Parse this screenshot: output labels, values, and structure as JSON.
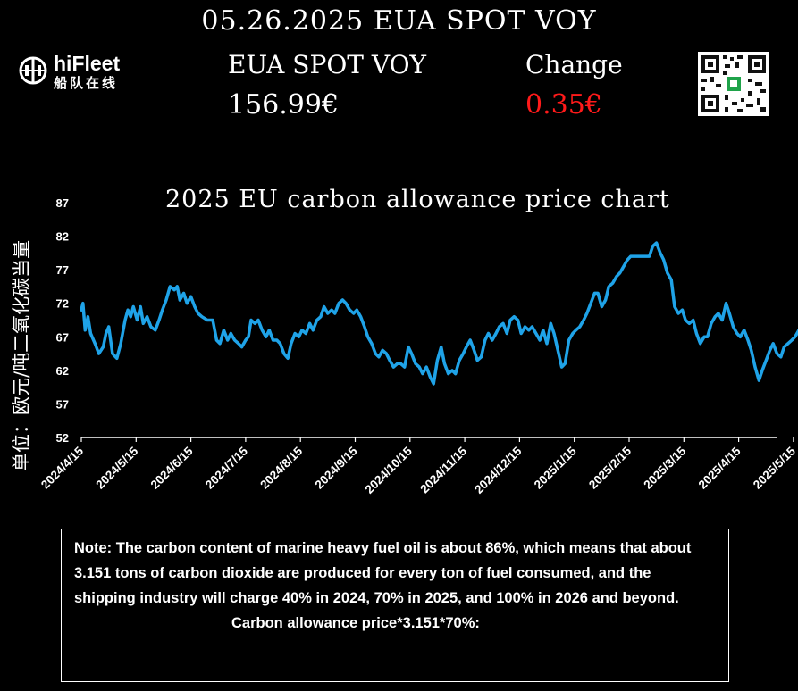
{
  "header": {
    "title": "05.26.2025 EUA SPOT VOY",
    "name_label": "EUA SPOT VOY",
    "change_label": "Change",
    "price": "156.99€",
    "change": "0.35€",
    "change_color": "#ff1a1a"
  },
  "logo": {
    "name": "hiFleet",
    "sub": "船队在线",
    "icon": "ship-globe-icon"
  },
  "qr": {
    "icon": "qr-code-icon"
  },
  "note": {
    "text": "Note: The carbon content of marine heavy fuel oil is about 86%, which means that about 3.151 tons of carbon dioxide are produced for every ton of fuel consumed, and the shipping industry will charge 40% in 2024, 70% in 2025, and 100% in 2026 and beyond.",
    "formula": "Carbon allowance price*3.151*70%:"
  },
  "chart_data": {
    "type": "line",
    "title": "2025 EU carbon allowance price chart",
    "ylabel": "单位：欧元/吨二氧化碳当量",
    "xlabel": "",
    "ylim": [
      52,
      87
    ],
    "yticks": [
      52,
      57,
      62,
      67,
      72,
      77,
      82,
      87
    ],
    "grid": false,
    "legend": "none",
    "line_color": "#1fa3e8",
    "categories": [
      "2024/4/15",
      "2024/5/15",
      "2024/6/15",
      "2024/7/15",
      "2024/8/15",
      "2024/9/15",
      "2024/10/15",
      "2024/11/15",
      "2024/12/15",
      "2025/1/15",
      "2025/2/15",
      "2025/3/15",
      "2025/4/15",
      "2025/5/15"
    ],
    "x_range_months": [
      0,
      13.35
    ],
    "series": [
      {
        "values": [
          [
            0.0,
            71.0
          ],
          [
            0.03,
            72.0
          ],
          [
            0.07,
            68.0
          ],
          [
            0.12,
            70.0
          ],
          [
            0.17,
            67.5
          ],
          [
            0.25,
            66.0
          ],
          [
            0.32,
            64.5
          ],
          [
            0.4,
            65.5
          ],
          [
            0.45,
            67.5
          ],
          [
            0.5,
            68.5
          ],
          [
            0.57,
            64.5
          ],
          [
            0.65,
            63.8
          ],
          [
            0.72,
            66.0
          ],
          [
            0.8,
            69.5
          ],
          [
            0.85,
            71.0
          ],
          [
            0.9,
            70.0
          ],
          [
            0.95,
            71.5
          ],
          [
            1.02,
            69.5
          ],
          [
            1.08,
            71.5
          ],
          [
            1.13,
            69.0
          ],
          [
            1.2,
            70.0
          ],
          [
            1.27,
            68.5
          ],
          [
            1.35,
            68.0
          ],
          [
            1.42,
            69.5
          ],
          [
            1.48,
            71.0
          ],
          [
            1.55,
            72.5
          ],
          [
            1.62,
            74.5
          ],
          [
            1.7,
            74.0
          ],
          [
            1.75,
            74.5
          ],
          [
            1.8,
            72.5
          ],
          [
            1.87,
            73.5
          ],
          [
            1.93,
            72.0
          ],
          [
            2.0,
            73.0
          ],
          [
            2.07,
            71.5
          ],
          [
            2.13,
            70.5
          ],
          [
            2.2,
            70.0
          ],
          [
            2.3,
            69.5
          ],
          [
            2.4,
            69.5
          ],
          [
            2.47,
            66.5
          ],
          [
            2.53,
            66.0
          ],
          [
            2.6,
            68.0
          ],
          [
            2.67,
            66.5
          ],
          [
            2.73,
            67.5
          ],
          [
            2.8,
            66.5
          ],
          [
            2.87,
            66.0
          ],
          [
            2.93,
            65.5
          ],
          [
            3.0,
            66.5
          ],
          [
            3.05,
            67.0
          ],
          [
            3.1,
            69.5
          ],
          [
            3.17,
            69.0
          ],
          [
            3.23,
            69.5
          ],
          [
            3.3,
            68.0
          ],
          [
            3.37,
            67.0
          ],
          [
            3.43,
            68.0
          ],
          [
            3.5,
            66.5
          ],
          [
            3.57,
            66.5
          ],
          [
            3.63,
            66.0
          ],
          [
            3.7,
            64.5
          ],
          [
            3.77,
            63.8
          ],
          [
            3.83,
            66.0
          ],
          [
            3.9,
            67.5
          ],
          [
            3.97,
            67.0
          ],
          [
            4.03,
            68.0
          ],
          [
            4.1,
            67.5
          ],
          [
            4.17,
            69.0
          ],
          [
            4.23,
            68.0
          ],
          [
            4.3,
            69.5
          ],
          [
            4.37,
            70.0
          ],
          [
            4.43,
            71.5
          ],
          [
            4.5,
            70.5
          ],
          [
            4.57,
            71.0
          ],
          [
            4.63,
            70.5
          ],
          [
            4.7,
            72.0
          ],
          [
            4.77,
            72.5
          ],
          [
            4.83,
            72.0
          ],
          [
            4.9,
            71.0
          ],
          [
            4.97,
            70.5
          ],
          [
            5.03,
            71.0
          ],
          [
            5.1,
            70.0
          ],
          [
            5.17,
            68.5
          ],
          [
            5.23,
            67.0
          ],
          [
            5.3,
            66.0
          ],
          [
            5.37,
            64.5
          ],
          [
            5.43,
            64.0
          ],
          [
            5.5,
            65.0
          ],
          [
            5.57,
            64.5
          ],
          [
            5.63,
            63.5
          ],
          [
            5.7,
            62.5
          ],
          [
            5.77,
            63.0
          ],
          [
            5.83,
            63.0
          ],
          [
            5.9,
            62.5
          ],
          [
            5.97,
            65.5
          ],
          [
            6.03,
            64.5
          ],
          [
            6.1,
            63.0
          ],
          [
            6.17,
            62.5
          ],
          [
            6.23,
            61.5
          ],
          [
            6.3,
            62.5
          ],
          [
            6.37,
            61.0
          ],
          [
            6.43,
            60.0
          ],
          [
            6.5,
            63.5
          ],
          [
            6.57,
            65.5
          ],
          [
            6.63,
            63.0
          ],
          [
            6.7,
            61.5
          ],
          [
            6.77,
            62.0
          ],
          [
            6.83,
            61.5
          ],
          [
            6.9,
            63.5
          ],
          [
            6.97,
            64.5
          ],
          [
            7.03,
            65.5
          ],
          [
            7.1,
            66.5
          ],
          [
            7.17,
            65.0
          ],
          [
            7.23,
            63.5
          ],
          [
            7.3,
            64.0
          ],
          [
            7.37,
            66.5
          ],
          [
            7.43,
            67.5
          ],
          [
            7.5,
            66.5
          ],
          [
            7.57,
            67.5
          ],
          [
            7.63,
            68.5
          ],
          [
            7.7,
            69.0
          ],
          [
            7.77,
            67.5
          ],
          [
            7.83,
            69.5
          ],
          [
            7.9,
            70.0
          ],
          [
            7.97,
            69.5
          ],
          [
            8.03,
            67.5
          ],
          [
            8.1,
            68.5
          ],
          [
            8.17,
            68.0
          ],
          [
            8.23,
            68.5
          ],
          [
            8.3,
            67.5
          ],
          [
            8.37,
            66.5
          ],
          [
            8.43,
            68.0
          ],
          [
            8.5,
            66.0
          ],
          [
            8.57,
            69.0
          ],
          [
            8.63,
            67.5
          ],
          [
            8.7,
            65.0
          ],
          [
            8.77,
            62.5
          ],
          [
            8.83,
            63.0
          ],
          [
            8.9,
            66.5
          ],
          [
            8.97,
            67.5
          ],
          [
            9.03,
            68.0
          ],
          [
            9.1,
            68.5
          ],
          [
            9.17,
            69.5
          ],
          [
            9.23,
            70.5
          ],
          [
            9.3,
            72.0
          ],
          [
            9.37,
            73.5
          ],
          [
            9.43,
            73.5
          ],
          [
            9.5,
            71.5
          ],
          [
            9.57,
            72.5
          ],
          [
            9.63,
            74.5
          ],
          [
            9.7,
            75.0
          ],
          [
            9.77,
            76.0
          ],
          [
            9.83,
            76.5
          ],
          [
            9.9,
            77.5
          ],
          [
            9.97,
            78.5
          ],
          [
            10.03,
            79.0
          ],
          [
            10.1,
            79.0
          ],
          [
            10.17,
            79.0
          ],
          [
            10.23,
            79.0
          ],
          [
            10.3,
            79.0
          ],
          [
            10.37,
            79.0
          ],
          [
            10.43,
            80.5
          ],
          [
            10.5,
            81.0
          ],
          [
            10.57,
            79.5
          ],
          [
            10.63,
            78.5
          ],
          [
            10.7,
            76.5
          ],
          [
            10.77,
            75.5
          ],
          [
            10.83,
            71.5
          ],
          [
            10.9,
            70.5
          ],
          [
            10.97,
            71.0
          ],
          [
            11.03,
            69.5
          ],
          [
            11.1,
            69.0
          ],
          [
            11.17,
            69.5
          ],
          [
            11.23,
            67.5
          ],
          [
            11.3,
            66.0
          ],
          [
            11.37,
            67.0
          ],
          [
            11.43,
            67.0
          ],
          [
            11.5,
            69.0
          ],
          [
            11.57,
            70.0
          ],
          [
            11.63,
            70.5
          ],
          [
            11.7,
            69.5
          ],
          [
            11.77,
            72.0
          ],
          [
            11.83,
            70.5
          ],
          [
            11.9,
            68.5
          ],
          [
            11.97,
            67.5
          ],
          [
            12.03,
            67.0
          ],
          [
            12.1,
            68.0
          ],
          [
            12.17,
            66.5
          ],
          [
            12.23,
            65.0
          ],
          [
            12.3,
            62.5
          ],
          [
            12.37,
            60.5
          ],
          [
            12.43,
            62.0
          ],
          [
            12.5,
            63.5
          ],
          [
            12.57,
            65.0
          ],
          [
            12.63,
            66.0
          ],
          [
            12.7,
            64.5
          ],
          [
            12.77,
            64.0
          ],
          [
            12.83,
            65.5
          ],
          [
            12.9,
            66.0
          ],
          [
            12.97,
            66.5
          ],
          [
            13.03,
            67.0
          ],
          [
            13.1,
            68.0
          ],
          [
            13.17,
            68.0
          ],
          [
            13.23,
            70.0
          ],
          [
            13.3,
            72.5
          ],
          [
            13.37,
            72.5
          ],
          [
            13.43,
            70.5
          ],
          [
            13.5,
            72.0
          ],
          [
            13.57,
            72.5
          ],
          [
            13.63,
            70.5
          ],
          [
            13.7,
            70.0
          ],
          [
            13.77,
            71.0
          ],
          [
            13.83,
            70.5
          ],
          [
            13.87,
            72.0
          ]
        ]
      }
    ]
  }
}
